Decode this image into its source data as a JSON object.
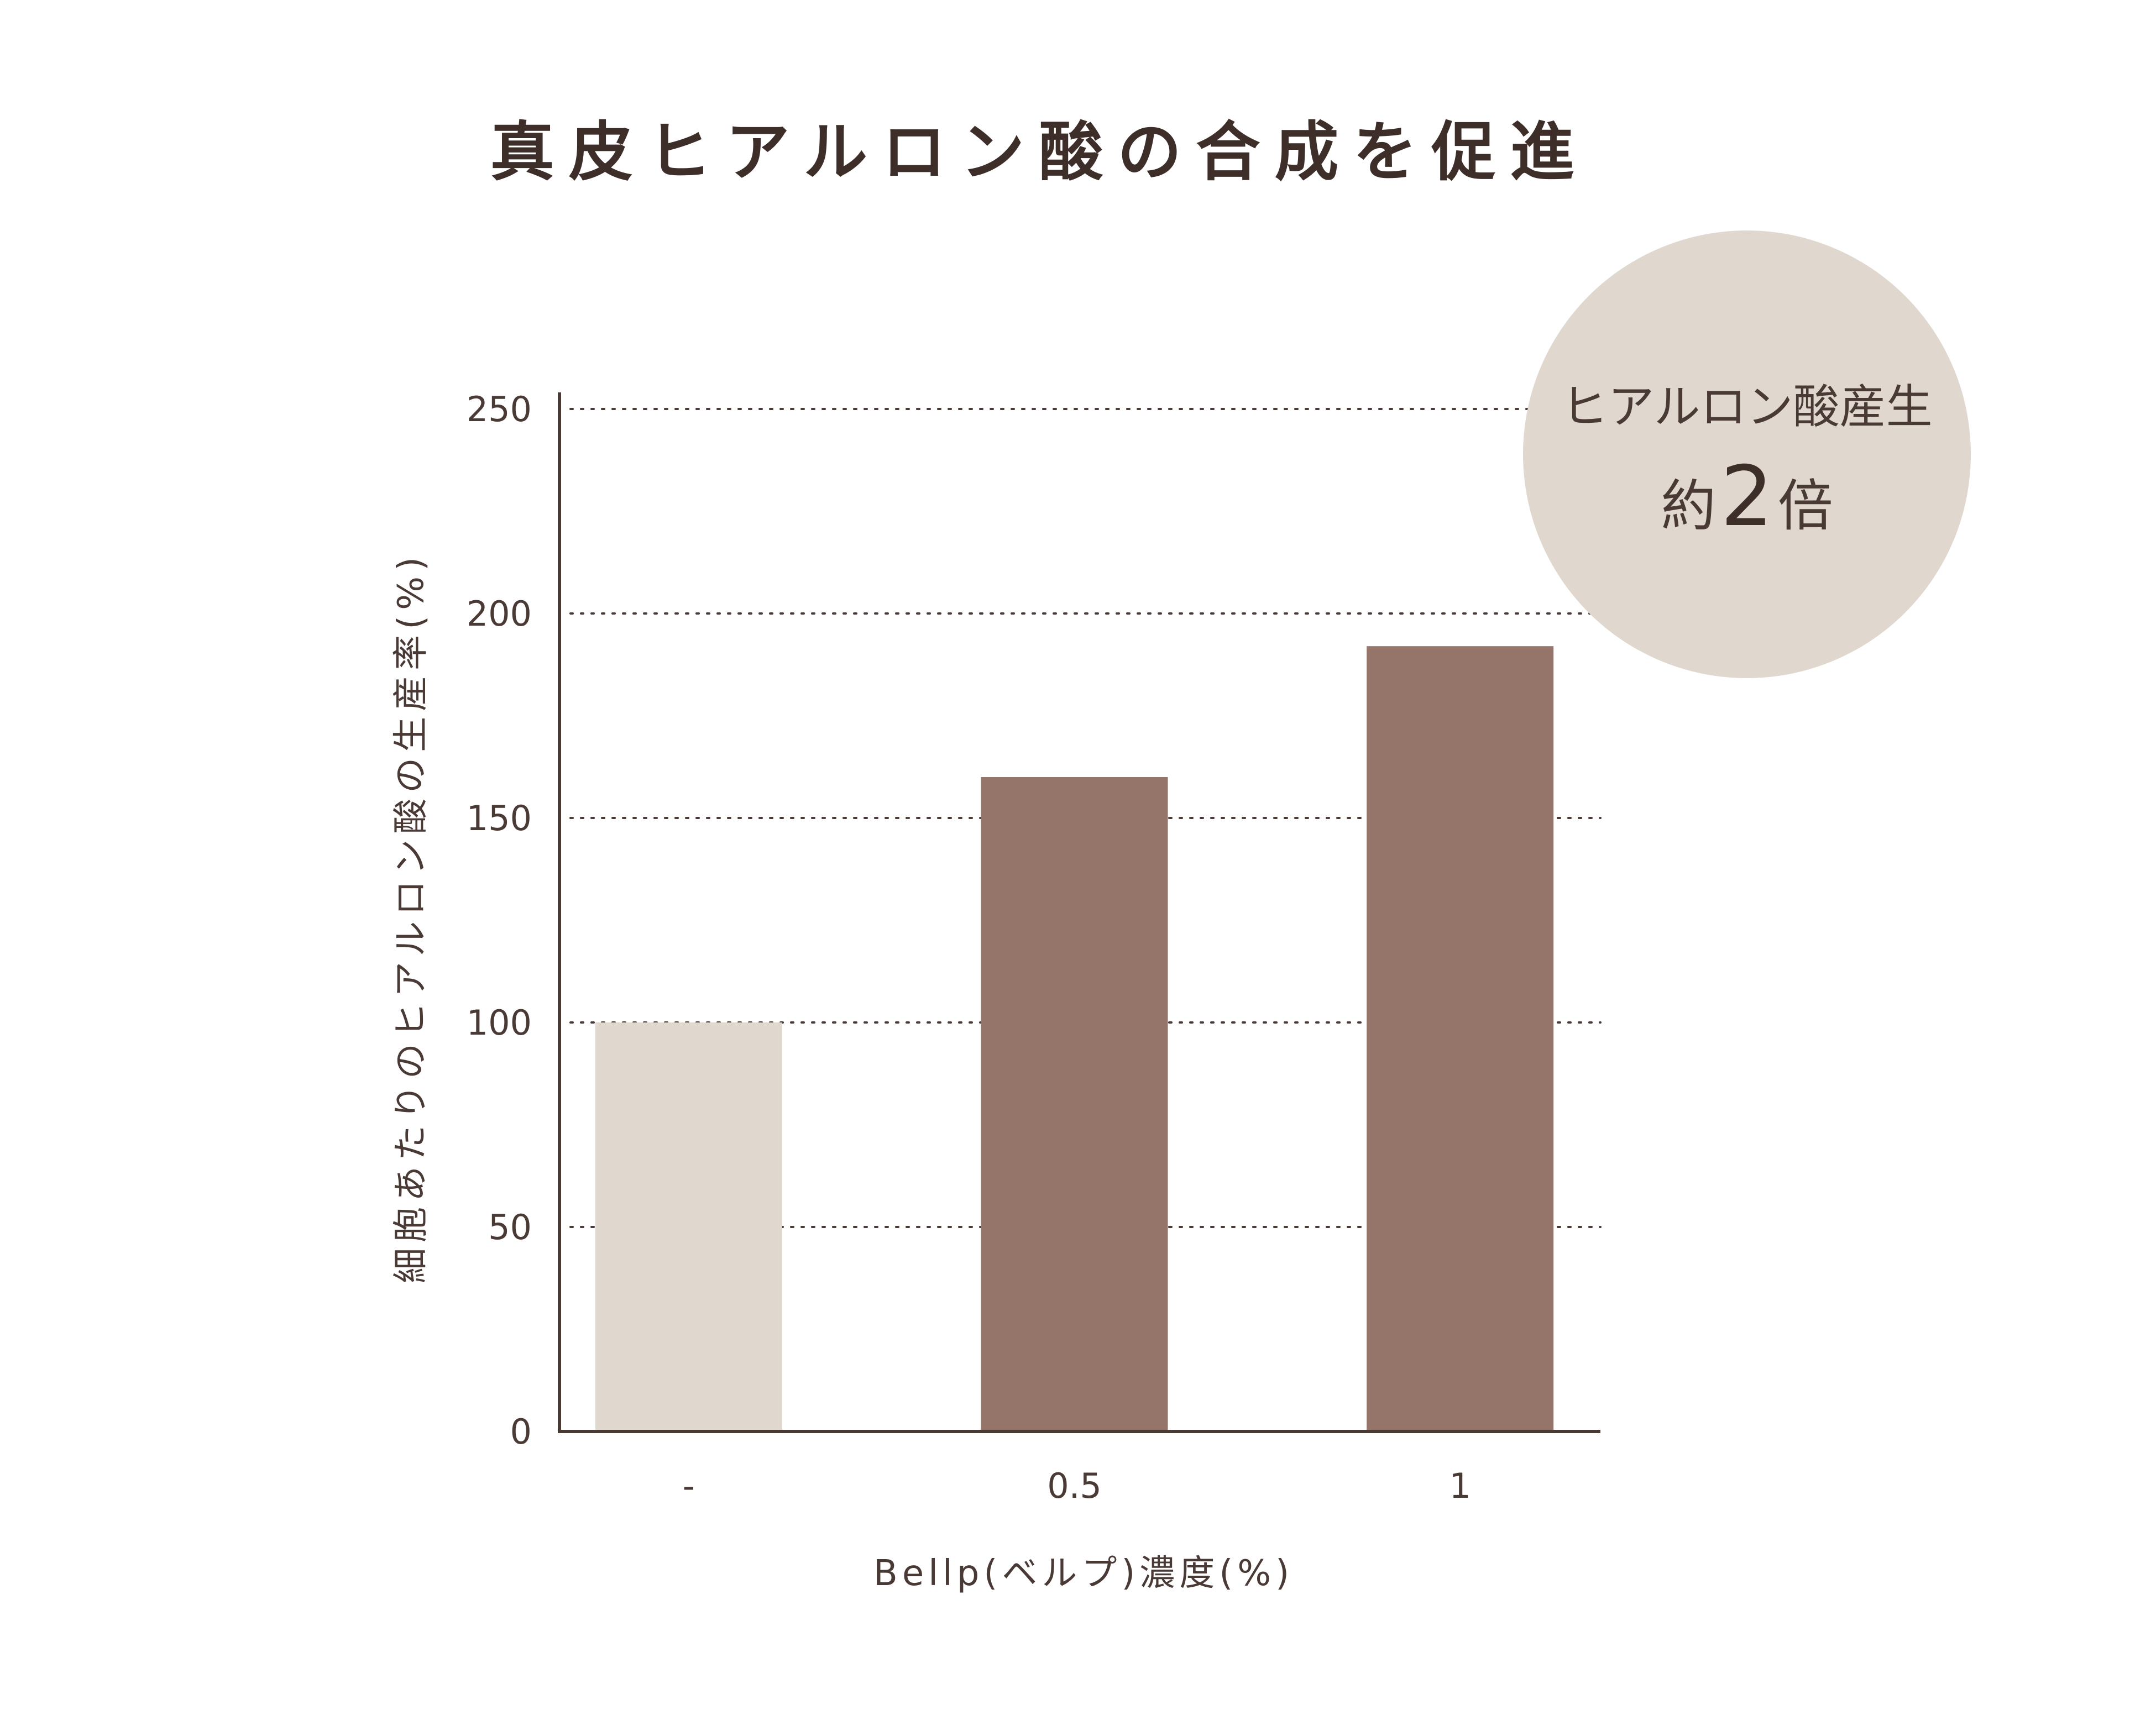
{
  "chart_data": {
    "type": "bar",
    "title": "真皮ヒアルロン酸の合成を促進",
    "xlabel": "Bellp(ベルプ)濃度(%)",
    "ylabel": "細胞あたりのヒアルロン酸の生産率(%)",
    "categories": [
      "-",
      "0.5",
      "1"
    ],
    "values": [
      100,
      160,
      192
    ],
    "ylim": [
      0,
      250
    ],
    "yticks": [
      0,
      50,
      100,
      150,
      200,
      250
    ],
    "grid": "dotted-horizontal",
    "colors": {
      "control": "#e0d7cf",
      "treated": "#957569",
      "axis": "#4a3a36",
      "text": "#4a3a36",
      "badge": "#e0d7cf"
    },
    "annotation": {
      "line1": "ヒアルロン酸産生",
      "prefix": "約",
      "number": "2",
      "suffix": "倍"
    }
  }
}
